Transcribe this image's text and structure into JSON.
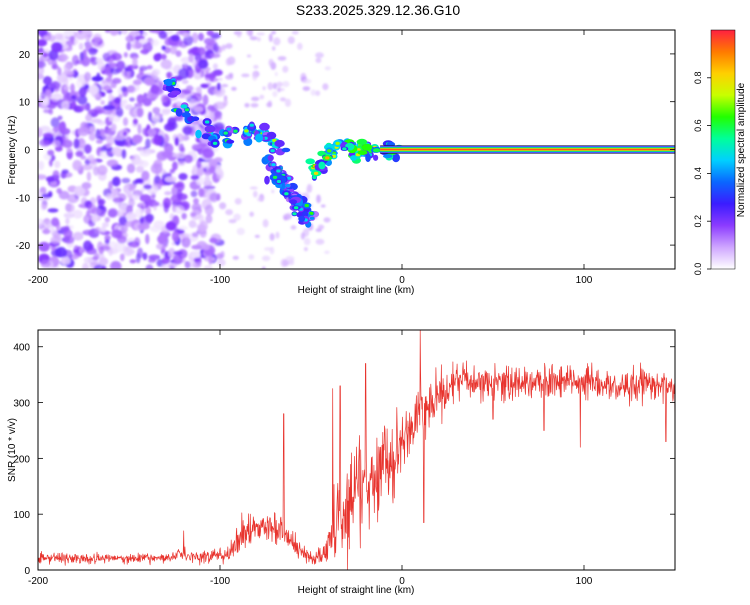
{
  "title": "S233.2025.329.12.36.G10",
  "chart_data": [
    {
      "type": "heatmap",
      "title": "S233.2025.329.12.36.G10",
      "xlabel": "Height of straight line (km)",
      "ylabel": "Frequency (Hz)",
      "xlim": [
        -200,
        150
      ],
      "ylim": [
        -25,
        25
      ],
      "x_ticks": [
        -200,
        -100,
        0,
        100
      ],
      "y_ticks": [
        -20,
        -10,
        0,
        10,
        20
      ],
      "colorbar": {
        "label": "Normalized spectral amplitude",
        "range": [
          0,
          1
        ],
        "ticks": [
          "0.0",
          "0.2",
          "0.4",
          "0.6",
          "0.8"
        ],
        "colors": [
          "#ffffff",
          "#cfa6ff",
          "#8c3cff",
          "#3b1cff",
          "#0a66ff",
          "#00d0ff",
          "#00ff9a",
          "#22ff00",
          "#c8ff00",
          "#ffd000",
          "#ff7a00",
          "#ff2040"
        ]
      },
      "features": [
        {
          "name": "scattered noise",
          "x_range": [
            -200,
            -100
          ],
          "freq_range": [
            -25,
            25
          ],
          "amplitude": 0.15
        },
        {
          "name": "upper branch",
          "points": [
            [
              -130,
              14
            ],
            [
              -124,
              11
            ],
            [
              -118,
              6
            ],
            [
              -108,
              4
            ],
            [
              -98,
              2
            ],
            [
              -90,
              3
            ],
            [
              -82,
              4
            ],
            [
              -76,
              3
            ],
            [
              -70,
              1
            ],
            [
              -64,
              0
            ]
          ],
          "amplitude": 0.3
        },
        {
          "name": "lower branch",
          "points": [
            [
              -75,
              -2
            ],
            [
              -70,
              -4
            ],
            [
              -65,
              -7
            ],
            [
              -60,
              -10
            ],
            [
              -55,
              -13
            ],
            [
              -50,
              -15
            ]
          ],
          "amplitude": 0.25
        },
        {
          "name": "converging branch",
          "points": [
            [
              -48,
              -5
            ],
            [
              -44,
              -3
            ],
            [
              -40,
              -1
            ],
            [
              -36,
              0.5
            ],
            [
              -32,
              1
            ],
            [
              -28,
              0
            ],
            [
              -24,
              -1
            ],
            [
              -20,
              0
            ],
            [
              -10,
              0
            ],
            [
              0,
              0
            ]
          ],
          "amplitude": 0.4
        },
        {
          "name": "carrier line",
          "x_range": [
            -12,
            150
          ],
          "freq": 0,
          "amplitude": 0.95
        }
      ]
    },
    {
      "type": "line",
      "xlabel": "Height of straight line (km)",
      "ylabel": "SNR (10 * v/v)",
      "xlim": [
        -200,
        150
      ],
      "ylim": [
        0,
        430
      ],
      "x_ticks": [
        -200,
        -100,
        0,
        100
      ],
      "y_ticks": [
        0,
        100,
        200,
        300,
        400
      ],
      "series": [
        {
          "name": "SNR",
          "color": "#e8342e",
          "trend": [
            [
              -200,
              20
            ],
            [
              -130,
              22
            ],
            [
              -122,
              30
            ],
            [
              -115,
              22
            ],
            [
              -95,
              28
            ],
            [
              -90,
              60
            ],
            [
              -80,
              70
            ],
            [
              -70,
              75
            ],
            [
              -62,
              55
            ],
            [
              -55,
              30
            ],
            [
              -48,
              20
            ],
            [
              -42,
              30
            ],
            [
              -35,
              100
            ],
            [
              -30,
              120
            ],
            [
              -25,
              150
            ],
            [
              -20,
              170
            ],
            [
              -15,
              130
            ],
            [
              -12,
              200
            ],
            [
              -8,
              190
            ],
            [
              -4,
              210
            ],
            [
              0,
              230
            ],
            [
              5,
              250
            ],
            [
              10,
              280
            ],
            [
              15,
              300
            ],
            [
              20,
              310
            ],
            [
              25,
              320
            ],
            [
              30,
              345
            ],
            [
              40,
              340
            ],
            [
              60,
              335
            ],
            [
              80,
              340
            ],
            [
              100,
              335
            ],
            [
              120,
              330
            ],
            [
              140,
              335
            ],
            [
              150,
              320
            ]
          ],
          "noise": [
            [
              -200,
              10
            ],
            [
              -130,
              8
            ],
            [
              -95,
              15
            ],
            [
              -90,
              35
            ],
            [
              -60,
              20
            ],
            [
              -50,
              10
            ],
            [
              -42,
              20
            ],
            [
              -35,
              80
            ],
            [
              -20,
              90
            ],
            [
              -10,
              80
            ],
            [
              0,
              60
            ],
            [
              10,
              50
            ],
            [
              30,
              30
            ],
            [
              150,
              30
            ]
          ],
          "spikes": [
            [
              -120,
              70
            ],
            [
              -65,
              280
            ],
            [
              -38,
              325
            ],
            [
              -34,
              330
            ],
            [
              -20,
              370
            ],
            [
              -10,
              225
            ],
            [
              -5,
              120
            ],
            [
              10,
              430
            ],
            [
              12,
              85
            ],
            [
              50,
              270
            ],
            [
              78,
              250
            ],
            [
              98,
              220
            ],
            [
              145,
              230
            ],
            [
              150,
              250
            ]
          ]
        }
      ]
    }
  ]
}
